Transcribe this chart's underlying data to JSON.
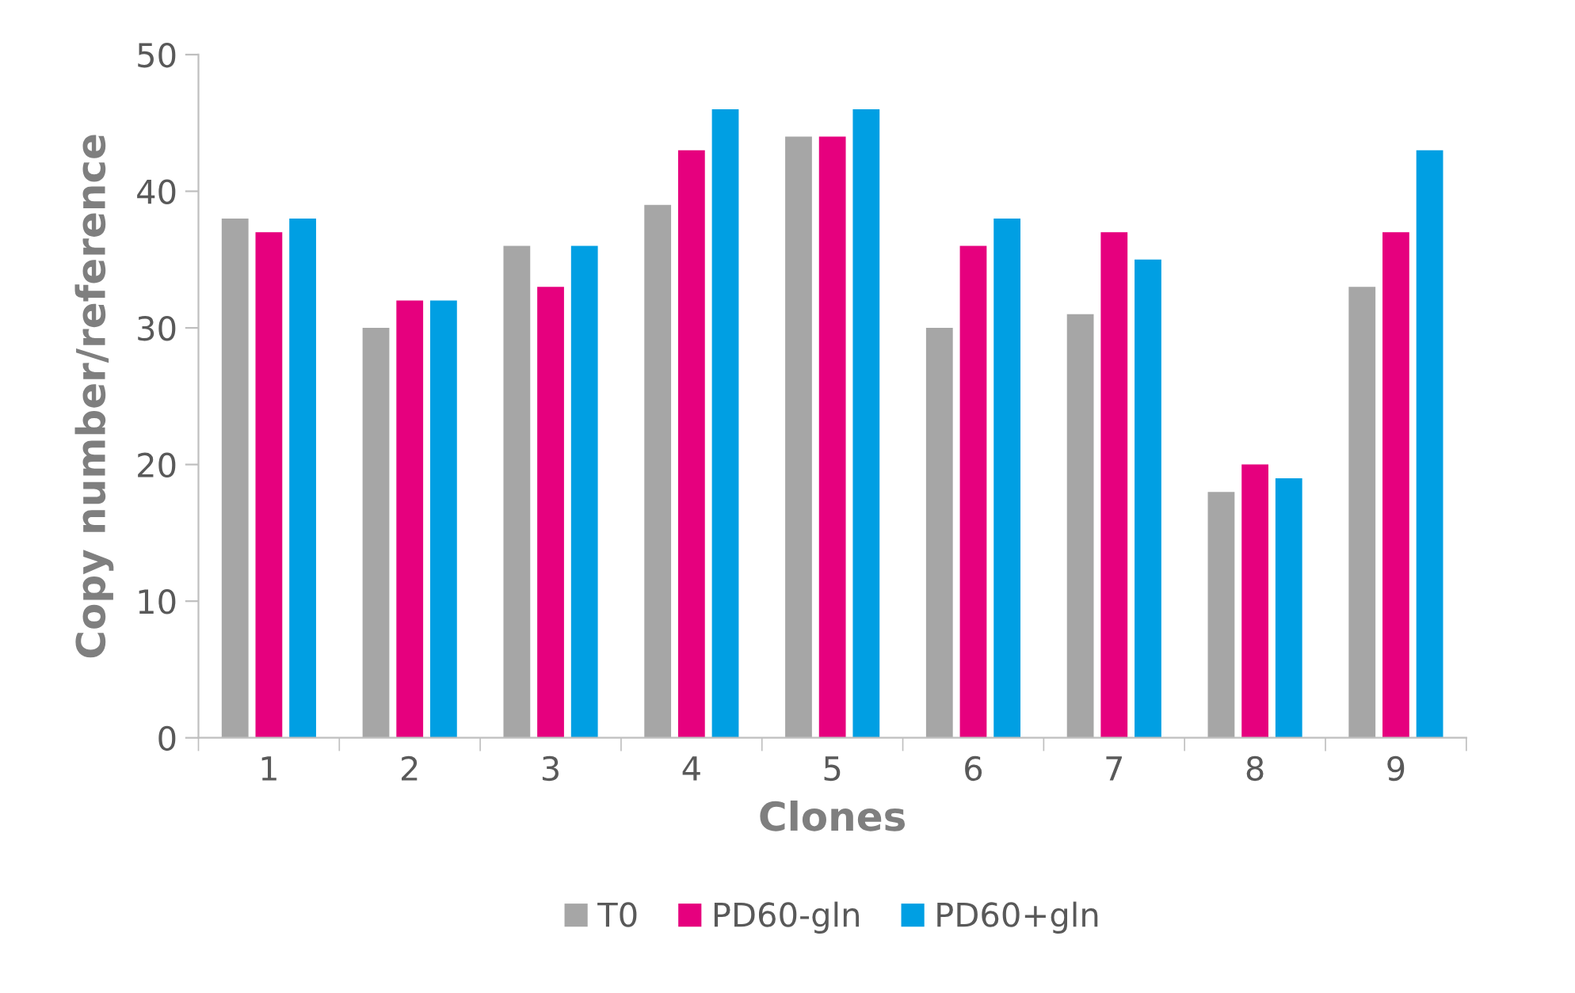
{
  "chart_data": {
    "type": "bar",
    "xlabel": "Clones",
    "ylabel": "Copy number/reference",
    "categories": [
      "1",
      "2",
      "3",
      "4",
      "5",
      "6",
      "7",
      "8",
      "9"
    ],
    "series": [
      {
        "name": "T0",
        "color": "#a6a6a6",
        "values": [
          38,
          30,
          36,
          39,
          44,
          30,
          31,
          18,
          33
        ]
      },
      {
        "name": "PD60-gln",
        "color": "#e6007e",
        "values": [
          37,
          32,
          33,
          43,
          44,
          36,
          37,
          20,
          37
        ]
      },
      {
        "name": "PD60+gln",
        "color": "#009fe3",
        "values": [
          38,
          32,
          36,
          46,
          46,
          38,
          35,
          19,
          43
        ]
      }
    ],
    "ylim": [
      0,
      50
    ],
    "yticks": [
      0,
      10,
      20,
      30,
      40,
      50
    ],
    "grid": false,
    "legend": "bottom"
  }
}
